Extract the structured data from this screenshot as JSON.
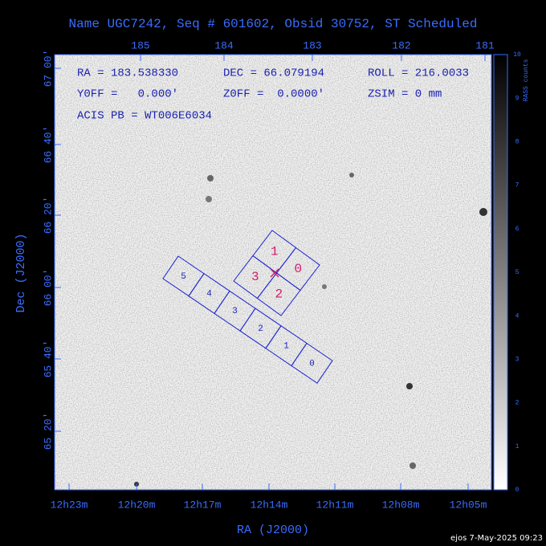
{
  "title": "Name UGC7242, Seq # 601602, Obsid 30752, ST Scheduled",
  "info_lines": [
    [
      "RA = 183.538330",
      "DEC = 66.079194",
      "ROLL = 216.0033"
    ],
    [
      "Y0FF =   0.000'",
      "Z0FF =  0.0000'",
      "ZSIM = 0 mm"
    ],
    [
      "ACIS PB = WT006E6034"
    ]
  ],
  "top_axis": {
    "labels": [
      "185",
      "184",
      "183",
      "182",
      "181"
    ]
  },
  "left_axis": {
    "title": "Dec (J2000)",
    "labels": [
      "67 00'",
      "66 40'",
      "66 20'",
      "66 00'",
      "65 40'",
      "65 20'"
    ]
  },
  "bottom_axis": {
    "title": "RA (J2000)",
    "labels": [
      "12h23m",
      "12h20m",
      "12h17m",
      "12h14m",
      "12h11m",
      "12h08m",
      "12h05m"
    ]
  },
  "colorbar": {
    "label": "RASS counts",
    "ticks": [
      "0",
      "1",
      "2",
      "3",
      "4",
      "5",
      "6",
      "7",
      "8",
      "9",
      "10"
    ]
  },
  "acis_i": {
    "labels": [
      "1",
      "0",
      "3",
      "2"
    ]
  },
  "acis_s": {
    "labels": [
      "5",
      "4",
      "3",
      "2",
      "1",
      "0"
    ]
  },
  "footer": "ejos  7-May-2025 09:23"
}
